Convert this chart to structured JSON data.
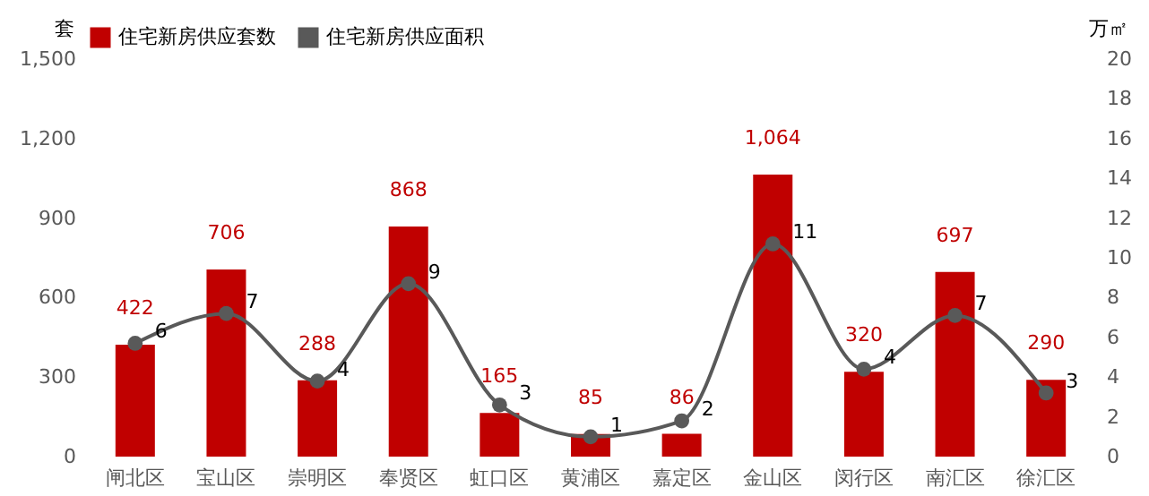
{
  "chart_data": {
    "type": "bar",
    "categories": [
      "闸北区",
      "宝山区",
      "崇明区",
      "奉贤区",
      "虹口区",
      "黄浦区",
      "嘉定区",
      "金山区",
      "闵行区",
      "南汇区",
      "徐汇区"
    ],
    "series": [
      {
        "name": "住宅新房供应套数",
        "color": "#c00000",
        "values": [
          422,
          706,
          288,
          868,
          165,
          85,
          86,
          1064,
          320,
          697,
          290
        ],
        "value_labels": [
          "422",
          "706",
          "288",
          "868",
          "165",
          "85",
          "86",
          "1,064",
          "320",
          "697",
          "290"
        ]
      },
      {
        "name": "住宅新房供应面积",
        "type": "line",
        "axis": "y2",
        "color": "#595959",
        "values": [
          5.7,
          7.2,
          3.8,
          8.7,
          2.6,
          1.0,
          1.8,
          10.7,
          4.4,
          7.1,
          3.2
        ],
        "value_labels": [
          "6",
          "7",
          "4",
          "9",
          "3",
          "1",
          "2",
          "11",
          "4",
          "7",
          "3"
        ]
      }
    ],
    "ylabel": "套",
    "y2label": "万㎡",
    "ylim": [
      0,
      1500
    ],
    "yticks": [
      {
        "value": 0,
        "label": "0"
      },
      {
        "value": 300,
        "label": "300"
      },
      {
        "value": 600,
        "label": "600"
      },
      {
        "value": 900,
        "label": "900"
      },
      {
        "value": 1200,
        "label": "1,200"
      },
      {
        "value": 1500,
        "label": "1,500"
      }
    ],
    "y2lim": [
      0,
      20
    ],
    "y2ticks": [
      0,
      2,
      4,
      6,
      8,
      10,
      12,
      14,
      16,
      18,
      20
    ],
    "legend": "top",
    "grid": false,
    "marker": "circle",
    "line_style": "solid"
  }
}
